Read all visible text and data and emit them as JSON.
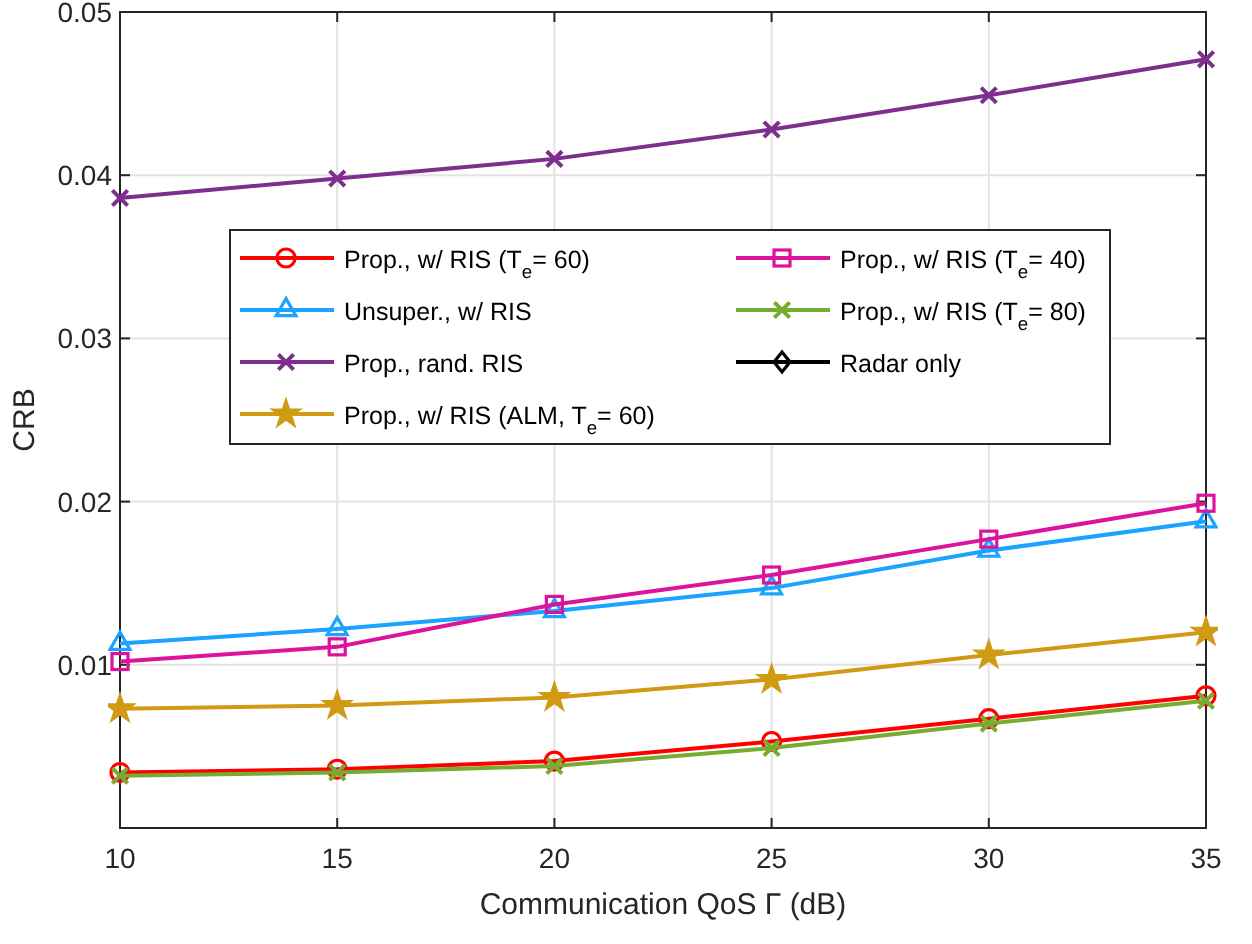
{
  "chart_data": {
    "type": "line",
    "xlabel": "Communication QoS Γ (dB)",
    "ylabel": "CRB",
    "x": [
      10,
      15,
      20,
      25,
      30,
      35
    ],
    "xlim": [
      10,
      35
    ],
    "xticks": [
      10,
      15,
      20,
      25,
      30,
      35
    ],
    "ylim": [
      0,
      0.05
    ],
    "yticks": [
      0.01,
      0.02,
      0.03,
      0.04,
      0.05
    ],
    "grid": true,
    "legend": "top",
    "line_style": "solid",
    "series": [
      {
        "name": "Prop., w/ RIS (T$_{e}$= 60)",
        "color": "#ff0000",
        "marker": "circle",
        "values": [
          0.0034,
          0.0036,
          0.0041,
          0.0053,
          0.0067,
          0.0081
        ]
      },
      {
        "name": "Unsuper., w/ RIS",
        "color": "#1aa3ff",
        "marker": "triangle",
        "values": [
          0.0113,
          0.0122,
          0.0133,
          0.0147,
          0.017,
          0.0188
        ]
      },
      {
        "name": "Prop., rand. RIS",
        "color": "#7e2f8e",
        "marker": "cross",
        "values": [
          0.0386,
          0.0398,
          0.041,
          0.0428,
          0.0449,
          0.0471
        ]
      },
      {
        "name": "Prop., w/ RIS (ALM, T$_{e}$= 60)",
        "color": "#d09a12",
        "marker": "star",
        "values": [
          0.0073,
          0.0075,
          0.008,
          0.0091,
          0.0106,
          0.012
        ]
      },
      {
        "name": "Prop., w/ RIS (T$_{e}$=  40)",
        "color": "#dc139c",
        "marker": "square",
        "values": [
          0.0102,
          0.0111,
          0.0137,
          0.0155,
          0.0177,
          0.0199
        ]
      },
      {
        "name": "Prop., w/ RIS  (T$_{e}$= 80)",
        "color": "#77ac30",
        "marker": "cross",
        "values": [
          0.0032,
          0.0034,
          0.0038,
          0.0049,
          0.0064,
          0.0078
        ]
      },
      {
        "name": "Radar only",
        "color": "#000000",
        "marker": "diamond",
        "values": [
          null,
          null,
          null,
          null,
          null,
          null
        ]
      }
    ]
  }
}
